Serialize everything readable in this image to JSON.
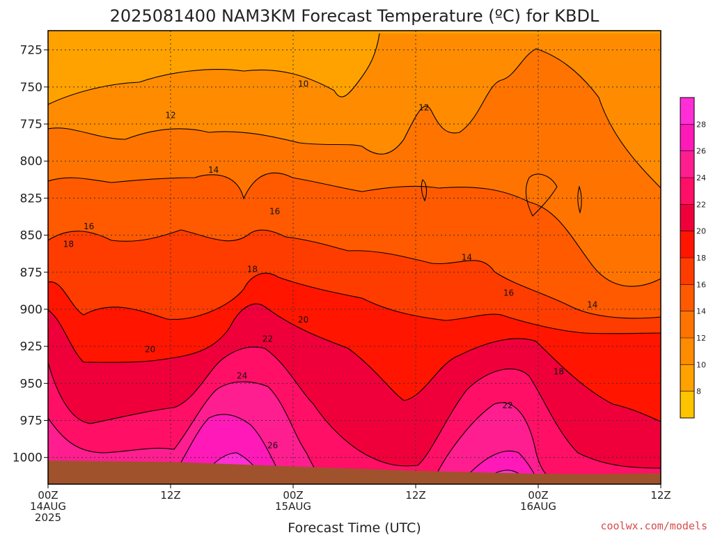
{
  "chart_data": {
    "type": "heatmap",
    "title": "2025081400 NAM3KM Forecast Temperature (ºC) for KBDL",
    "xlabel": "Forecast Time (UTC)",
    "ylabel": "",
    "x_ticks": [
      {
        "hour": 0,
        "line1": "00Z",
        "line2": "14AUG",
        "line3": "2025"
      },
      {
        "hour": 12,
        "line1": "12Z",
        "line2": "",
        "line3": ""
      },
      {
        "hour": 24,
        "line1": "00Z",
        "line2": "15AUG",
        "line3": ""
      },
      {
        "hour": 36,
        "line1": "12Z",
        "line2": "",
        "line3": ""
      },
      {
        "hour": 48,
        "line1": "00Z",
        "line2": "16AUG",
        "line3": ""
      },
      {
        "hour": 60,
        "line1": "12Z",
        "line2": "",
        "line3": ""
      }
    ],
    "xlim": [
      0,
      60
    ],
    "y_ticks": [
      725,
      750,
      775,
      800,
      825,
      850,
      875,
      900,
      925,
      950,
      975,
      1000
    ],
    "ylim_hPa": [
      1018,
      712
    ],
    "colorbar": {
      "ticks": [
        8,
        10,
        12,
        14,
        16,
        18,
        20,
        22,
        24,
        26,
        28
      ],
      "range": [
        6,
        30
      ],
      "colors": [
        "#ffc400",
        "#ffa200",
        "#ff8c00",
        "#ff7400",
        "#ff5a00",
        "#ff3c00",
        "#ff1500",
        "#f0003a",
        "#ff0f66",
        "#ff1e90",
        "#ff19b8",
        "#ff2ed6"
      ]
    },
    "contour_labels": [
      {
        "text": "10",
        "hour": 25.0,
        "hPa": 748
      },
      {
        "text": "12",
        "hour": 12.0,
        "hPa": 769
      },
      {
        "text": "12",
        "hour": 36.8,
        "hPa": 764
      },
      {
        "text": "14",
        "hour": 16.2,
        "hPa": 806
      },
      {
        "text": "14",
        "hour": 41.0,
        "hPa": 865
      },
      {
        "text": "14",
        "hour": 53.3,
        "hPa": 897
      },
      {
        "text": "16",
        "hour": 4.0,
        "hPa": 844
      },
      {
        "text": "16",
        "hour": 22.2,
        "hPa": 834
      },
      {
        "text": "16",
        "hour": 45.1,
        "hPa": 889
      },
      {
        "text": "18",
        "hour": 2.0,
        "hPa": 856
      },
      {
        "text": "18",
        "hour": 20.0,
        "hPa": 873
      },
      {
        "text": "18",
        "hour": 50.0,
        "hPa": 942
      },
      {
        "text": "20",
        "hour": 10.0,
        "hPa": 927
      },
      {
        "text": "20",
        "hour": 25.0,
        "hPa": 907
      },
      {
        "text": "22",
        "hour": 21.5,
        "hPa": 920
      },
      {
        "text": "22",
        "hour": 45.0,
        "hPa": 965
      },
      {
        "text": "24",
        "hour": 19.0,
        "hPa": 945
      },
      {
        "text": "26",
        "hour": 22.0,
        "hPa": 992
      }
    ],
    "surface_pressure_hPa": [
      {
        "hour": 0,
        "p": 1002
      },
      {
        "hour": 12,
        "p": 1003
      },
      {
        "hour": 24,
        "p": 1006
      },
      {
        "hour": 30,
        "p": 1007.5
      },
      {
        "hour": 36,
        "p": 1009
      },
      {
        "hour": 42,
        "p": 1010
      },
      {
        "hour": 48,
        "p": 1011
      },
      {
        "hour": 54,
        "p": 1011.2
      },
      {
        "hour": 60,
        "p": 1010.6
      }
    ]
  },
  "credit": "coolwx.com/models",
  "colors": {
    "ground": "#a0522d",
    "contour": "#000000",
    "grid": "#333333"
  }
}
